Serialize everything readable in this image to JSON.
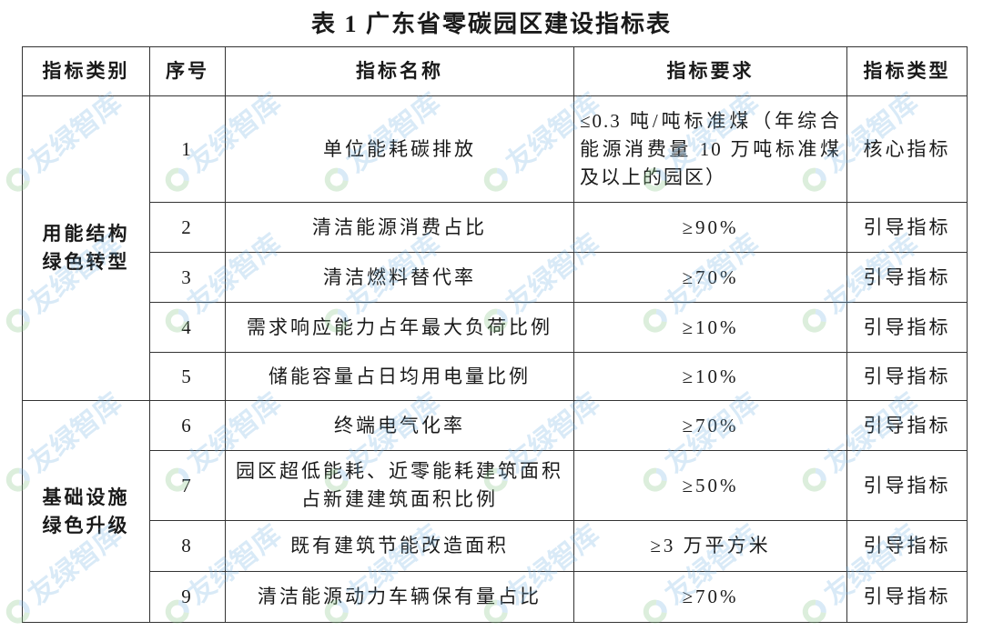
{
  "title": "表 1  广东省零碳园区建设指标表",
  "watermark": "友绿智库",
  "headers": [
    "指标类别",
    "序号",
    "指标名称",
    "指标要求",
    "指标类型"
  ],
  "categories": [
    {
      "label": "用能结构\n绿色转型"
    },
    {
      "label": "基础设施\n绿色升级"
    }
  ],
  "rows": [
    {
      "no": "1",
      "name": "单位能耗碳排放",
      "req": "≤0.3 吨/吨标准煤（年综合能源消费量 10 万吨标准煤及以上的园区）",
      "type": "核心指标"
    },
    {
      "no": "2",
      "name": "清洁能源消费占比",
      "req": "≥90%",
      "type": "引导指标"
    },
    {
      "no": "3",
      "name": "清洁燃料替代率",
      "req": "≥70%",
      "type": "引导指标"
    },
    {
      "no": "4",
      "name": "需求响应能力占年最大负荷比例",
      "req": "≥10%",
      "type": "引导指标"
    },
    {
      "no": "5",
      "name": "储能容量占日均用电量比例",
      "req": "≥10%",
      "type": "引导指标"
    },
    {
      "no": "6",
      "name": "终端电气化率",
      "req": "≥70%",
      "type": "引导指标"
    },
    {
      "no": "7",
      "name": "园区超低能耗、近零能耗建筑面积占新建建筑面积比例",
      "req": "≥50%",
      "type": "引导指标"
    },
    {
      "no": "8",
      "name": "既有建筑节能改造面积",
      "req": "≥3 万平方米",
      "type": "引导指标"
    },
    {
      "no": "9",
      "name": "清洁能源动力车辆保有量占比",
      "req": "≥70%",
      "type": "引导指标"
    }
  ]
}
